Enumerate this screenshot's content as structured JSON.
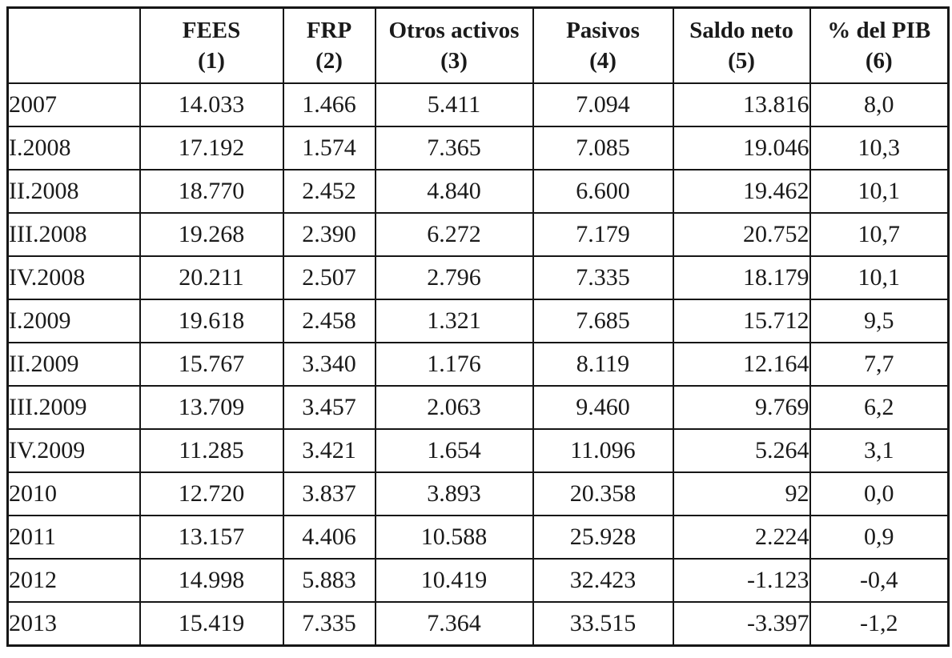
{
  "table": {
    "header": [
      {
        "title": "",
        "num": ""
      },
      {
        "title": "FEES",
        "num": "(1)"
      },
      {
        "title": "FRP",
        "num": "(2)"
      },
      {
        "title": "Otros activos",
        "num": "(3)"
      },
      {
        "title": "Pasivos",
        "num": "(4)"
      },
      {
        "title": "Saldo neto",
        "num": "(5)"
      },
      {
        "title": "% del PIB",
        "num": "(6)"
      }
    ],
    "column_keys": [
      "period",
      "fees",
      "frp",
      "otros_activos",
      "pasivos",
      "saldo_neto",
      "pct_del_pib"
    ],
    "rows": [
      [
        "2007",
        "14.033",
        "1.466",
        "5.411",
        "7.094",
        "13.816",
        "8,0"
      ],
      [
        "I.2008",
        "17.192",
        "1.574",
        "7.365",
        "7.085",
        "19.046",
        "10,3"
      ],
      [
        "II.2008",
        "18.770",
        "2.452",
        "4.840",
        "6.600",
        "19.462",
        "10,1"
      ],
      [
        "III.2008",
        "19.268",
        "2.390",
        "6.272",
        "7.179",
        "20.752",
        "10,7"
      ],
      [
        "IV.2008",
        "20.211",
        "2.507",
        "2.796",
        "7.335",
        "18.179",
        "10,1"
      ],
      [
        "I.2009",
        "19.618",
        "2.458",
        "1.321",
        "7.685",
        "15.712",
        "9,5"
      ],
      [
        "II.2009",
        "15.767",
        "3.340",
        "1.176",
        "8.119",
        "12.164",
        "7,7"
      ],
      [
        "III.2009",
        "13.709",
        "3.457",
        "2.063",
        "9.460",
        "9.769",
        "6,2"
      ],
      [
        "IV.2009",
        "11.285",
        "3.421",
        "1.654",
        "11.096",
        "5.264",
        "3,1"
      ],
      [
        "2010",
        "12.720",
        "3.837",
        "3.893",
        "20.358",
        "92",
        "0,0"
      ],
      [
        "2011",
        "13.157",
        "4.406",
        "10.588",
        "25.928",
        "2.224",
        "0,9"
      ],
      [
        "2012",
        "14.998",
        "5.883",
        "10.419",
        "32.423",
        "-1.123",
        "-0,4"
      ],
      [
        "2013",
        "15.419",
        "7.335",
        "7.364",
        "33.515",
        "-3.397",
        "-1,2"
      ]
    ],
    "colors": {
      "border": "#161616",
      "text": "#1a1a1a",
      "background": "#ffffff"
    }
  }
}
